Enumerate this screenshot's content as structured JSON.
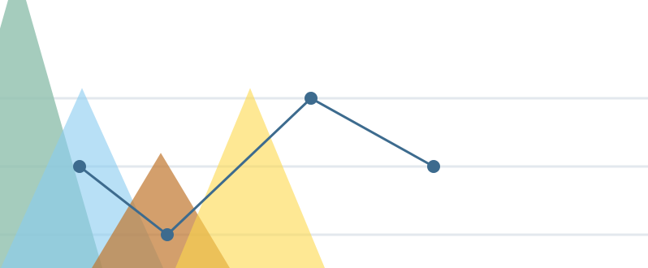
{
  "chart_data": {
    "type": "line",
    "title": "",
    "xlabel": "",
    "ylabel": "",
    "gridlines": [
      1,
      2,
      3
    ],
    "ylim": [
      0.5,
      4.9
    ],
    "line_series": {
      "color": "#3d6b8e",
      "points": [
        {
          "x": 1,
          "y": 2
        },
        {
          "x": 2,
          "y": 1
        },
        {
          "x": 3,
          "y": 3
        },
        {
          "x": 4,
          "y": 2
        }
      ]
    },
    "triangle_series": [
      {
        "color": "#8fbfad",
        "opacity": 0.8,
        "peak": 4.9
      },
      {
        "color": "#89cbf0",
        "opacity": 0.6,
        "peak": 3.15
      },
      {
        "color": "#c1762e",
        "opacity": 0.7,
        "peak": 2.2
      },
      {
        "color": "#fdd94d",
        "opacity": 0.6,
        "peak": 3.15
      }
    ],
    "legend": "none",
    "grid": true
  }
}
